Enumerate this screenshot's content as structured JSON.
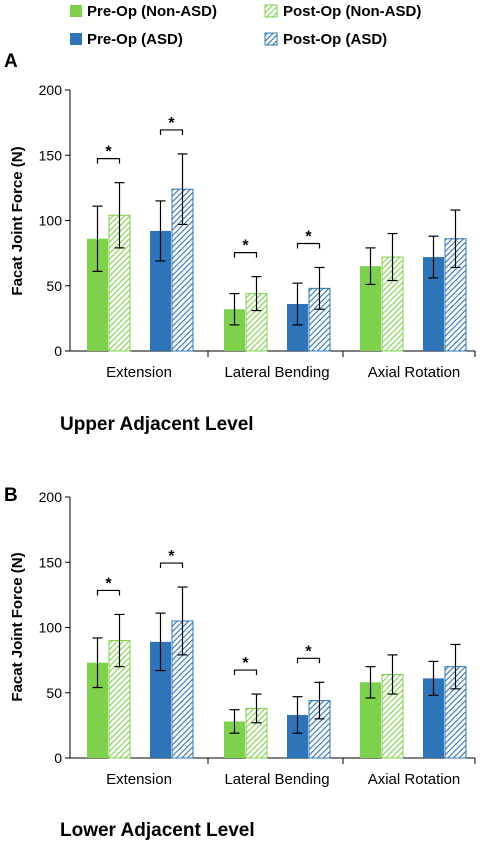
{
  "legend": {
    "items": [
      {
        "label": "Pre-Op (Non-ASD)",
        "color": "#7ed14a",
        "pattern": "solid"
      },
      {
        "label": "Post-Op (Non-ASD)",
        "color": "#7ed14a",
        "pattern": "hatched"
      },
      {
        "label": "Pre-Op (ASD)",
        "color": "#2e74b8",
        "pattern": "solid"
      },
      {
        "label": "Post-Op (ASD)",
        "color": "#2e74b8",
        "pattern": "hatched"
      }
    ]
  },
  "chart_data": [
    {
      "type": "bar",
      "panel_label": "A",
      "caption": "Upper Adjacent Level",
      "ylabel": "Facat Joint Force (N)",
      "ylim": [
        0,
        200
      ],
      "yticks": [
        0,
        50,
        100,
        150,
        200
      ],
      "categories": [
        "Extension",
        "Lateral Bending",
        "Axial Rotation"
      ],
      "series": [
        {
          "name": "Pre-Op (Non-ASD)",
          "values": [
            86,
            32,
            65
          ],
          "errors": [
            25,
            12,
            14
          ]
        },
        {
          "name": "Post-Op (Non-ASD)",
          "values": [
            104,
            44,
            72
          ],
          "errors": [
            25,
            13,
            18
          ]
        },
        {
          "name": "Pre-Op (ASD)",
          "values": [
            92,
            36,
            72
          ],
          "errors": [
            23,
            16,
            16
          ]
        },
        {
          "name": "Post-Op (ASD)",
          "values": [
            124,
            48,
            86
          ],
          "errors": [
            27,
            16,
            22
          ]
        }
      ],
      "significance": [
        {
          "category": 0,
          "group": "Non-ASD",
          "label": "*"
        },
        {
          "category": 0,
          "group": "ASD",
          "label": "*"
        },
        {
          "category": 1,
          "group": "Non-ASD",
          "label": "*"
        },
        {
          "category": 1,
          "group": "ASD",
          "label": "*"
        }
      ]
    },
    {
      "type": "bar",
      "panel_label": "B",
      "caption": "Lower Adjacent Level",
      "ylabel": "Facat Joint Force (N)",
      "ylim": [
        0,
        200
      ],
      "yticks": [
        0,
        50,
        100,
        150,
        200
      ],
      "categories": [
        "Extension",
        "Lateral Bending",
        "Axial Rotation"
      ],
      "series": [
        {
          "name": "Pre-Op (Non-ASD)",
          "values": [
            73,
            28,
            58
          ],
          "errors": [
            19,
            9,
            12
          ]
        },
        {
          "name": "Post-Op (Non-ASD)",
          "values": [
            90,
            38,
            64
          ],
          "errors": [
            20,
            11,
            15
          ]
        },
        {
          "name": "Pre-Op (ASD)",
          "values": [
            89,
            33,
            61
          ],
          "errors": [
            22,
            14,
            13
          ]
        },
        {
          "name": "Post-Op (ASD)",
          "values": [
            105,
            44,
            70
          ],
          "errors": [
            26,
            14,
            17
          ]
        }
      ],
      "significance": [
        {
          "category": 0,
          "group": "Non-ASD",
          "label": "*"
        },
        {
          "category": 0,
          "group": "ASD",
          "label": "*"
        },
        {
          "category": 1,
          "group": "Non-ASD",
          "label": "*"
        },
        {
          "category": 1,
          "group": "ASD",
          "label": "*"
        }
      ]
    }
  ]
}
